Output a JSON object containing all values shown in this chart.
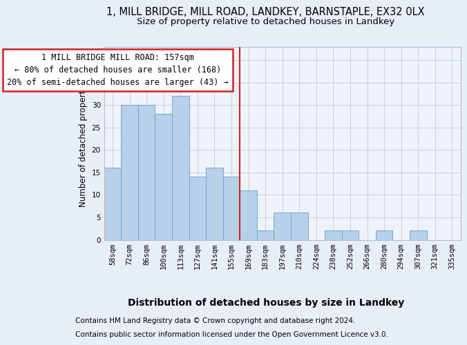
{
  "title1": "1, MILL BRIDGE, MILL ROAD, LANDKEY, BARNSTAPLE, EX32 0LX",
  "title2": "Size of property relative to detached houses in Landkey",
  "xlabel": "Distribution of detached houses by size in Landkey",
  "ylabel": "Number of detached properties",
  "bar_labels": [
    "58sqm",
    "72sqm",
    "86sqm",
    "100sqm",
    "113sqm",
    "127sqm",
    "141sqm",
    "155sqm",
    "169sqm",
    "183sqm",
    "197sqm",
    "210sqm",
    "224sqm",
    "238sqm",
    "252sqm",
    "266sqm",
    "280sqm",
    "294sqm",
    "307sqm",
    "321sqm",
    "335sqm"
  ],
  "bar_values": [
    16,
    30,
    30,
    28,
    32,
    14,
    16,
    14,
    11,
    2,
    6,
    6,
    0,
    2,
    2,
    0,
    2,
    0,
    2,
    0,
    0
  ],
  "bar_color": "#b8d0ea",
  "bar_edgecolor": "#6b9ec8",
  "property_line_label": "1 MILL BRIDGE MILL ROAD: 157sqm",
  "annotation_line1": "← 80% of detached houses are smaller (168)",
  "annotation_line2": "20% of semi-detached houses are larger (43) →",
  "vline_color": "#cc2222",
  "annotation_box_edgecolor": "#cc2222",
  "vline_index": 7.5,
  "ylim": [
    0,
    43
  ],
  "yticks": [
    0,
    5,
    10,
    15,
    20,
    25,
    30,
    35,
    40
  ],
  "footer1": "Contains HM Land Registry data © Crown copyright and database right 2024.",
  "footer2": "Contains public sector information licensed under the Open Government Licence v3.0.",
  "bg_color": "#e8eef8",
  "plot_bg_color": "#eef3fb",
  "grid_color": "#c5d0e0",
  "title1_fontsize": 10.5,
  "title2_fontsize": 9.5,
  "xlabel_fontsize": 10,
  "ylabel_fontsize": 8.5,
  "tick_fontsize": 7.5,
  "annotation_fontsize": 8.5,
  "footer_fontsize": 7.5
}
